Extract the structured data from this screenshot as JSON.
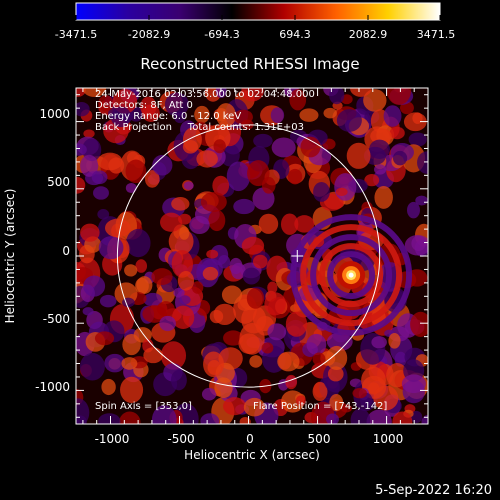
{
  "colorbar": {
    "ticks": [
      "-3471.5",
      "-2082.9",
      "-694.3",
      "694.3",
      "2082.9",
      "3471.5"
    ],
    "colors": [
      "#0000ff",
      "#2a00a0",
      "#3a0070",
      "#000000",
      "#b00000",
      "#ff6000",
      "#ffd000",
      "#ffffff"
    ]
  },
  "plot": {
    "title": "Reconstructed RHESSI Image",
    "info_lines": [
      "24-May-2016 02:03:56.000 to 02:04:48.000",
      "Detectors: 8F, Att 0",
      "Energy Range: 6.0 - 12.0 keV",
      "Back Projection     Total counts: 1.31E+03"
    ],
    "spin_axis": "Spin Axis = [353,0]",
    "flare_position": "Flare Position = [743,-142]",
    "xlabel": "Heliocentric X (arcsec)",
    "ylabel": "Heliocentric Y (arcsec)",
    "x_ticks": [
      "-1000",
      "-500",
      "0",
      "500",
      "1000"
    ],
    "y_ticks": [
      "1000",
      "500",
      "0",
      "-500",
      "-1000"
    ],
    "x_range": [
      -1250,
      1300
    ],
    "y_range": [
      -1250,
      1250
    ],
    "solar_radius": 950,
    "spin_axis_xy": [
      353,
      0
    ],
    "flare_xy": [
      743,
      -142
    ]
  },
  "footer": {
    "timestamp": "5-Sep-2022 16:20"
  }
}
